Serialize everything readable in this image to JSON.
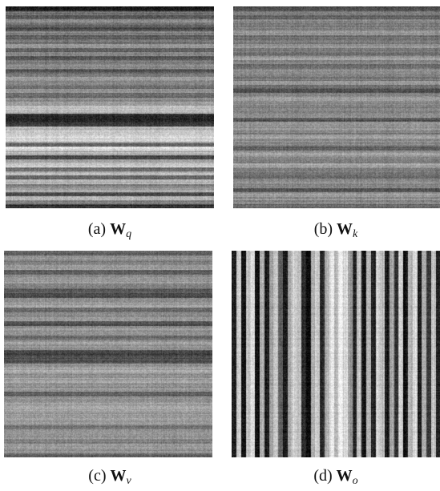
{
  "figure": {
    "panels": [
      {
        "id": "a",
        "prefix": "(a)",
        "matrix": "W",
        "subscript": "q",
        "pattern": "horizontal",
        "seed": 11,
        "bands": [
          0.12,
          0.45,
          0.35,
          0.55,
          0.42,
          0.3,
          0.5,
          0.38,
          0.44,
          0.6,
          0.4,
          0.52,
          0.36,
          0.48,
          0.56,
          0.34,
          0.46,
          0.62,
          0.5,
          0.44,
          0.58,
          0.4,
          0.53,
          0.66,
          0.74,
          0.7,
          0.18,
          0.14,
          0.22,
          0.72,
          0.78,
          0.82,
          0.8,
          0.4,
          0.86,
          0.7,
          0.3,
          0.66,
          0.8,
          0.42,
          0.74,
          0.36,
          0.7,
          0.5,
          0.64,
          0.3,
          0.72,
          0.5,
          0.2
        ]
      },
      {
        "id": "b",
        "prefix": "(b)",
        "matrix": "W",
        "subscript": "k",
        "pattern": "horizontal",
        "seed": 23,
        "bands": [
          0.3,
          0.5,
          0.4,
          0.55,
          0.45,
          0.52,
          0.6,
          0.44,
          0.48,
          0.58,
          0.5,
          0.46,
          0.62,
          0.54,
          0.4,
          0.56,
          0.5,
          0.48,
          0.58,
          0.44,
          0.3,
          0.55,
          0.6,
          0.52,
          0.5,
          0.48,
          0.56,
          0.34,
          0.6,
          0.58,
          0.5,
          0.64,
          0.54,
          0.52,
          0.36,
          0.6,
          0.54,
          0.48,
          0.66,
          0.52,
          0.5,
          0.44,
          0.58,
          0.52,
          0.34,
          0.62,
          0.56,
          0.5,
          0.4
        ]
      },
      {
        "id": "c",
        "prefix": "(c)",
        "matrix": "W",
        "subscript": "v",
        "pattern": "horizontal",
        "seed": 37,
        "bands": [
          0.42,
          0.58,
          0.5,
          0.62,
          0.36,
          0.56,
          0.6,
          0.52,
          0.34,
          0.3,
          0.58,
          0.62,
          0.4,
          0.56,
          0.6,
          0.32,
          0.58,
          0.54,
          0.42,
          0.6,
          0.56,
          0.3,
          0.28,
          0.34,
          0.6,
          0.64,
          0.58,
          0.62,
          0.56,
          0.6,
          0.36,
          0.58,
          0.62,
          0.64,
          0.6,
          0.58,
          0.62,
          0.44,
          0.6,
          0.58,
          0.5,
          0.62,
          0.56,
          0.4
        ]
      },
      {
        "id": "d",
        "prefix": "(d)",
        "matrix": "W",
        "subscript": "o",
        "pattern": "vertical",
        "seed": 51,
        "bands": [
          0.1,
          0.8,
          0.08,
          0.74,
          0.84,
          0.06,
          0.7,
          0.12,
          0.62,
          0.78,
          0.4,
          0.1,
          0.68,
          0.82,
          0.72,
          0.2,
          0.08,
          0.7,
          0.78,
          0.14,
          0.66,
          0.88,
          0.72,
          0.94,
          0.84,
          0.6,
          0.16,
          0.76,
          0.08,
          0.7,
          0.12,
          0.82,
          0.74,
          0.1,
          0.66,
          0.18,
          0.8,
          0.08,
          0.72,
          0.86,
          0.12,
          0.7,
          0.22,
          0.78,
          0.1
        ]
      }
    ]
  }
}
